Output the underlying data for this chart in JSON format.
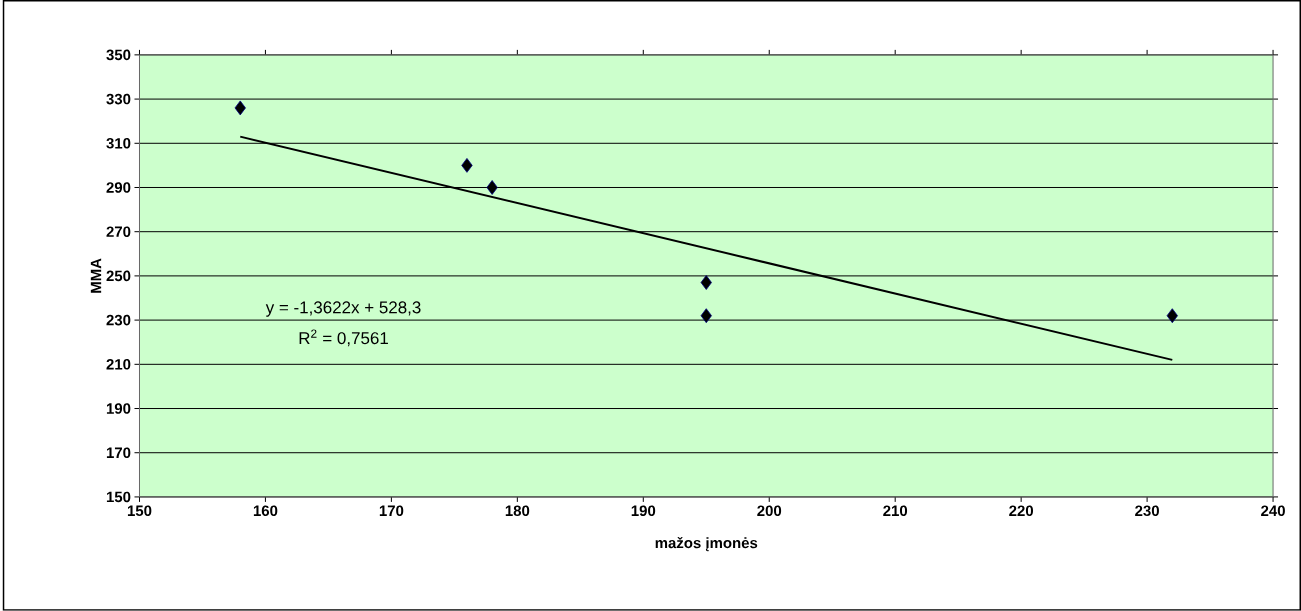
{
  "chart_data": {
    "type": "scatter",
    "xlabel": "mažos įmonės",
    "ylabel": "MMA",
    "annotations": [
      "y = -1,3622x + 528,3",
      "R$^{2}$ = 0,7561"
    ],
    "series": [
      {
        "color": "#000000",
        "marker": "diamond",
        "x": [
          158,
          176,
          178,
          195,
          195,
          232
        ],
        "values": [
          326,
          300,
          290,
          247,
          232,
          232
        ]
      },
      {
        "type": "line",
        "color": "#000000",
        "marker": "none",
        "line_style": "solid",
        "x": [
          158,
          232
        ],
        "values": [
          313,
          212
        ]
      }
    ],
    "xlim": [
      150,
      240
    ],
    "xticks": [
      150,
      160,
      170,
      180,
      190,
      200,
      210,
      220,
      230,
      240
    ],
    "ylim": [
      150,
      350
    ],
    "yticks": [
      150,
      170,
      190,
      210,
      230,
      250,
      270,
      290,
      310,
      330,
      350
    ],
    "grid": "y"
  }
}
